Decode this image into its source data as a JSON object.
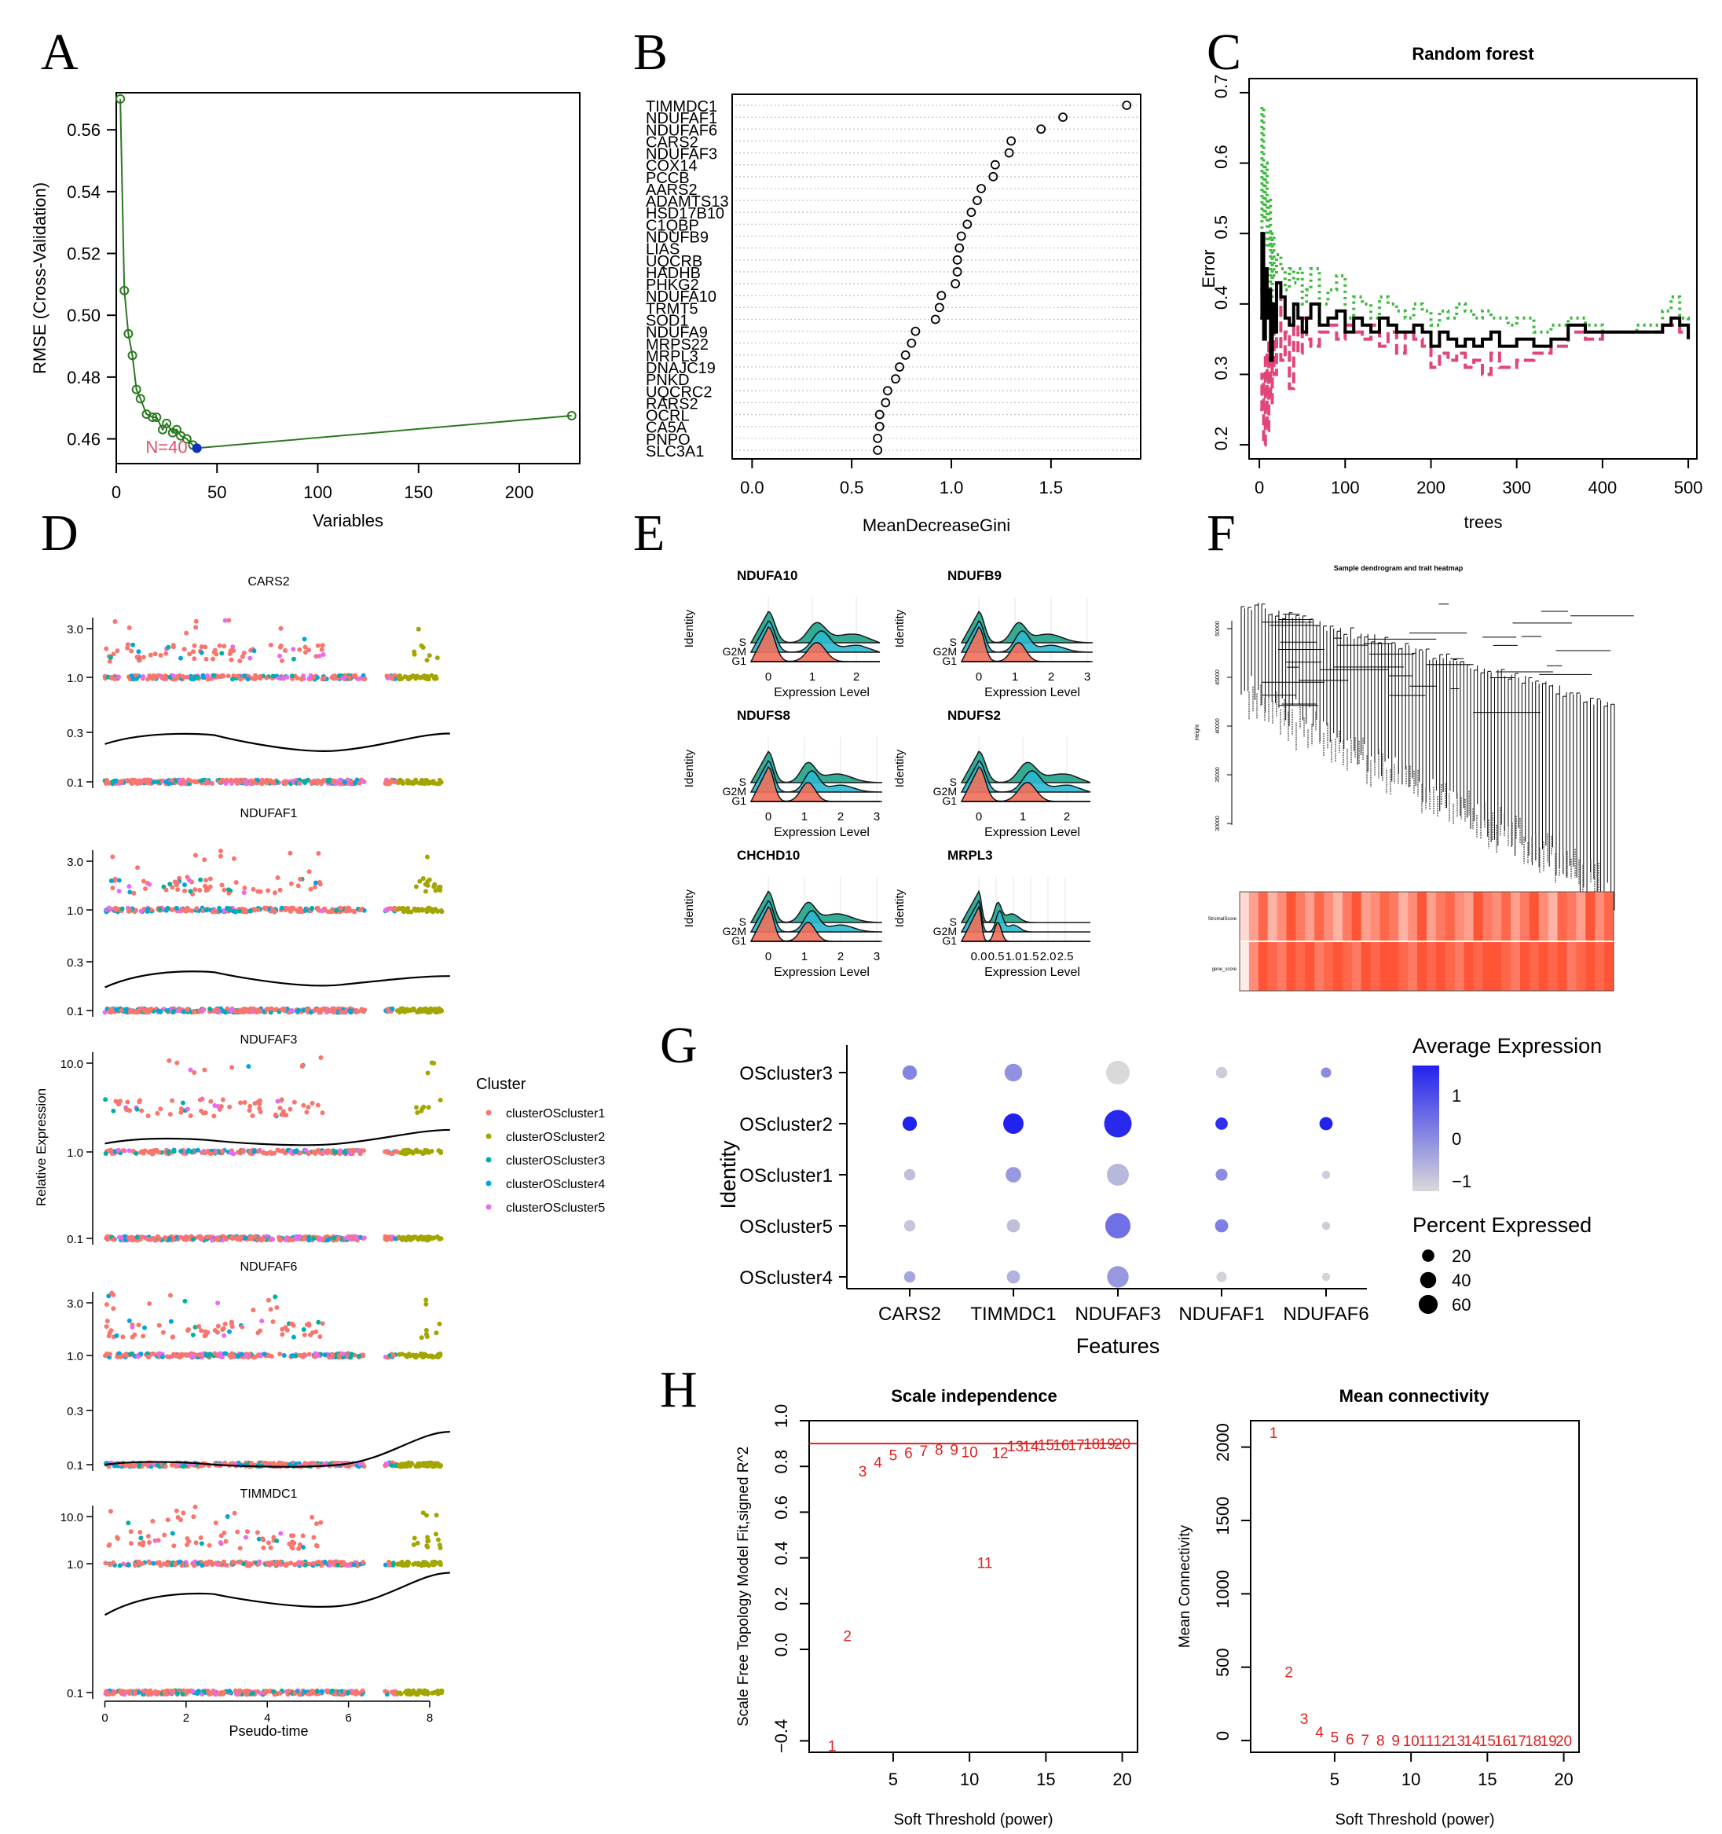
{
  "panel_labels": [
    "A",
    "B",
    "C",
    "D",
    "E",
    "F",
    "G",
    "H"
  ],
  "chart_data": [
    {
      "panel": "A",
      "type": "line",
      "title": "",
      "xlabel": "Variables",
      "ylabel": "RMSE (Cross-Validation)",
      "xlim": [
        0,
        230
      ],
      "ylim": [
        0.452,
        0.572
      ],
      "xticks": [
        0,
        50,
        100,
        150,
        200
      ],
      "yticks": [
        0.46,
        0.48,
        0.5,
        0.52,
        0.54,
        0.56
      ],
      "ytick_labels": [
        "0.46",
        "0.48",
        "0.50",
        "0.52",
        "0.54",
        "0.56"
      ],
      "x": [
        2,
        4,
        6,
        8,
        10,
        12,
        15,
        18,
        20,
        23,
        25,
        28,
        30,
        32,
        35,
        38,
        40,
        226
      ],
      "y": [
        0.57,
        0.508,
        0.494,
        0.487,
        0.476,
        0.473,
        0.468,
        0.467,
        0.467,
        0.463,
        0.465,
        0.462,
        0.463,
        0.461,
        0.46,
        0.458,
        0.457,
        0.4675
      ],
      "line_color": "#2a7a1f",
      "best": {
        "x": 40,
        "y": 0.457,
        "label": "N=40",
        "color": "#1030c0",
        "label_color": "#e05070"
      }
    },
    {
      "panel": "B",
      "type": "scatter",
      "xlabel": "MeanDecreaseGini",
      "xlim": [
        -0.1,
        1.95
      ],
      "xticks": [
        0.0,
        0.5,
        1.0,
        1.5
      ],
      "xtick_labels": [
        "0.0",
        "0.5",
        "1.0",
        "1.5"
      ],
      "categories": [
        "TIMMDC1",
        "NDUFAF1",
        "NDUFAF6",
        "CARS2",
        "NDUFAF3",
        "COX14",
        "PCCB",
        "AARS2",
        "ADAMTS13",
        "HSD17B10",
        "C1QBP",
        "NDUFB9",
        "LIAS",
        "UQCRB",
        "HADHB",
        "PHKG2",
        "NDUFA10",
        "TRMT5",
        "SOD1",
        "NDUFA9",
        "MRPS22",
        "MRPL3",
        "DNAJC19",
        "PNKD",
        "UQCRC2",
        "RARS2",
        "OCRL",
        "CA5A",
        "PNPO",
        "SLC3A1"
      ],
      "values": [
        1.88,
        1.56,
        1.45,
        1.3,
        1.29,
        1.22,
        1.21,
        1.15,
        1.13,
        1.1,
        1.08,
        1.05,
        1.04,
        1.03,
        1.03,
        1.02,
        0.95,
        0.94,
        0.92,
        0.82,
        0.8,
        0.77,
        0.74,
        0.72,
        0.68,
        0.67,
        0.64,
        0.64,
        0.63,
        0.63
      ]
    },
    {
      "panel": "C",
      "type": "line",
      "title": "Random forest",
      "xlabel": "trees",
      "ylabel": "Error",
      "xlim": [
        -12,
        510
      ],
      "ylim": [
        0.18,
        0.72
      ],
      "xticks": [
        0,
        100,
        200,
        300,
        400,
        500
      ],
      "yticks": [
        0.2,
        0.3,
        0.4,
        0.5,
        0.6,
        0.7
      ],
      "ytick_labels": [
        "0.2",
        "0.3",
        "0.4",
        "0.5",
        "0.6",
        "0.7"
      ],
      "series": [
        {
          "values_key": "oob",
          "color": "#000000",
          "style": "solid",
          "width": 4,
          "x": [
            1,
            3,
            5,
            7,
            9,
            11,
            13,
            15,
            17,
            20,
            25,
            30,
            35,
            40,
            45,
            50,
            55,
            60,
            70,
            80,
            90,
            100,
            110,
            120,
            130,
            140,
            150,
            160,
            170,
            180,
            190,
            200,
            210,
            220,
            230,
            240,
            250,
            260,
            270,
            280,
            290,
            300,
            320,
            340,
            360,
            380,
            400,
            420,
            440,
            460,
            470,
            480,
            490,
            500
          ],
          "y": [
            0.38,
            0.5,
            0.35,
            0.45,
            0.38,
            0.42,
            0.32,
            0.4,
            0.36,
            0.43,
            0.41,
            0.38,
            0.37,
            0.4,
            0.38,
            0.36,
            0.38,
            0.4,
            0.37,
            0.38,
            0.39,
            0.36,
            0.38,
            0.37,
            0.36,
            0.38,
            0.37,
            0.36,
            0.36,
            0.37,
            0.36,
            0.34,
            0.36,
            0.35,
            0.34,
            0.35,
            0.34,
            0.35,
            0.36,
            0.34,
            0.34,
            0.35,
            0.34,
            0.35,
            0.37,
            0.36,
            0.36,
            0.36,
            0.36,
            0.36,
            0.37,
            0.38,
            0.37,
            0.35
          ]
        },
        {
          "values_key": "class1",
          "color": "#e0457b",
          "style": "dashed",
          "width": 4,
          "x": [
            1,
            3,
            5,
            7,
            9,
            11,
            13,
            15,
            17,
            20,
            25,
            30,
            35,
            40,
            45,
            50,
            55,
            60,
            70,
            80,
            90,
            100,
            110,
            120,
            130,
            140,
            150,
            160,
            170,
            180,
            190,
            200,
            210,
            220,
            230,
            240,
            250,
            260,
            270,
            280,
            290,
            300,
            320,
            340,
            360,
            380,
            400,
            420,
            440,
            460,
            470,
            480,
            490,
            500
          ],
          "y": [
            0.25,
            0.3,
            0.2,
            0.33,
            0.22,
            0.35,
            0.26,
            0.38,
            0.3,
            0.42,
            0.32,
            0.36,
            0.28,
            0.37,
            0.33,
            0.38,
            0.35,
            0.34,
            0.36,
            0.37,
            0.35,
            0.37,
            0.36,
            0.35,
            0.37,
            0.34,
            0.36,
            0.33,
            0.36,
            0.35,
            0.34,
            0.31,
            0.33,
            0.32,
            0.33,
            0.31,
            0.32,
            0.3,
            0.33,
            0.31,
            0.31,
            0.32,
            0.33,
            0.34,
            0.36,
            0.35,
            0.36,
            0.36,
            0.36,
            0.36,
            0.37,
            0.37,
            0.36,
            0.35
          ]
        },
        {
          "values_key": "class2",
          "color": "#3fb83f",
          "style": "dotted",
          "width": 4,
          "x": [
            1,
            3,
            5,
            7,
            9,
            11,
            13,
            15,
            17,
            20,
            25,
            30,
            35,
            40,
            45,
            50,
            55,
            60,
            70,
            80,
            90,
            100,
            110,
            120,
            130,
            140,
            150,
            160,
            170,
            180,
            190,
            200,
            210,
            220,
            230,
            240,
            250,
            260,
            270,
            280,
            290,
            300,
            320,
            340,
            360,
            380,
            400,
            420,
            440,
            460,
            470,
            480,
            490,
            500
          ],
          "y": [
            0.42,
            0.68,
            0.52,
            0.6,
            0.48,
            0.55,
            0.4,
            0.5,
            0.44,
            0.47,
            0.45,
            0.42,
            0.45,
            0.43,
            0.45,
            0.4,
            0.42,
            0.45,
            0.4,
            0.42,
            0.44,
            0.38,
            0.41,
            0.4,
            0.38,
            0.41,
            0.4,
            0.39,
            0.38,
            0.4,
            0.39,
            0.37,
            0.39,
            0.38,
            0.4,
            0.39,
            0.38,
            0.39,
            0.38,
            0.38,
            0.37,
            0.38,
            0.36,
            0.37,
            0.38,
            0.37,
            0.36,
            0.36,
            0.37,
            0.37,
            0.39,
            0.41,
            0.38,
            0.36
          ]
        }
      ]
    },
    {
      "panel": "D",
      "type": "scatter",
      "xlabel": "Pseudo-time",
      "ylabel": "Relative Expression",
      "xlim": [
        -0.3,
        8.6
      ],
      "xticks": [
        0,
        2,
        4,
        6,
        8
      ],
      "legend": {
        "title": "Cluster",
        "placement": "right",
        "entries": [
          {
            "name": "clusterOScluster1",
            "color": "#f8766d"
          },
          {
            "name": "clusterOScluster2",
            "color": "#a3a500"
          },
          {
            "name": "clusterOScluster3",
            "color": "#00b0a0"
          },
          {
            "name": "clusterOScluster4",
            "color": "#00a5e0"
          },
          {
            "name": "clusterOScluster5",
            "color": "#e76bf3"
          }
        ]
      },
      "facets": [
        {
          "name": "CARS2",
          "levels": [
            "3.0",
            "1.0",
            "0.3",
            "0.1"
          ],
          "curve": [
            0.23,
            0.28,
            0.2,
            0.29
          ]
        },
        {
          "name": "NDUFAF1",
          "levels": [
            "3.0",
            "1.0",
            "0.3",
            "0.1"
          ],
          "curve": [
            0.17,
            0.24,
            0.18,
            0.22
          ]
        },
        {
          "name": "NDUFAF3",
          "levels": [
            "10.0",
            "1.0",
            "0.1"
          ],
          "curve": [
            1.25,
            1.35,
            1.25,
            1.8
          ]
        },
        {
          "name": "NDUFAF6",
          "levels": [
            "3.0",
            "1.0",
            "0.3",
            "0.1"
          ],
          "curve": [
            0.1,
            0.1,
            0.1,
            0.2
          ]
        },
        {
          "name": "TIMMDC1",
          "levels": [
            "10.0",
            "1.0",
            "0.1"
          ],
          "curve": [
            0.4,
            0.58,
            0.47,
            0.85
          ]
        }
      ]
    },
    {
      "panel": "E",
      "type": "area",
      "ylabel": "Identity",
      "xlabel": "Expression Level",
      "identities": [
        "S",
        "G2M",
        "G1"
      ],
      "colors": {
        "S": "#1fa38a",
        "G2M": "#2bbad0",
        "G1": "#f0705a"
      },
      "ridges": [
        {
          "gene": "NDUFA10",
          "xticks": [
            "0",
            "1",
            "2"
          ]
        },
        {
          "gene": "NDUFB9",
          "xticks": [
            "0",
            "1",
            "2",
            "3"
          ]
        },
        {
          "gene": "NDUFS8",
          "xticks": [
            "0",
            "1",
            "2",
            "3"
          ]
        },
        {
          "gene": "NDUFS2",
          "xticks": [
            "0",
            "1",
            "2"
          ]
        },
        {
          "gene": "CHCHD10",
          "xticks": [
            "0",
            "1",
            "2",
            "3"
          ]
        },
        {
          "gene": "MRPL3",
          "xticks": [
            "0.0",
            "0.5",
            "1.0",
            "1.5",
            "2.0",
            "2.5"
          ]
        }
      ]
    },
    {
      "panel": "F",
      "type": "heatmap",
      "title": "Sample dendrogram and trait heatmap",
      "ylabel": "Height",
      "yticks": [
        "50000",
        "45000",
        "40000",
        "35000",
        "30000"
      ],
      "rows": [
        "StromalScore",
        "gene_score"
      ],
      "intensity": {
        "StromalScore": [
          0.2,
          0.5,
          0.8,
          0.4,
          0.6,
          0.9,
          0.7,
          0.5,
          0.8,
          0.6,
          0.4,
          0.7,
          0.9,
          0.5,
          0.6,
          0.8,
          0.7,
          0.4,
          0.6,
          0.9,
          0.5,
          0.7,
          0.8,
          0.6,
          0.5,
          0.9,
          0.7,
          0.6,
          0.8,
          0.5,
          0.7,
          0.9,
          0.6,
          0.4,
          0.8,
          0.7,
          0.5,
          0.9,
          0.6,
          0.8
        ],
        "gene_score": [
          0.1,
          0.6,
          0.9,
          0.8,
          0.7,
          0.9,
          0.8,
          0.9,
          0.7,
          0.8,
          0.9,
          0.8,
          0.7,
          0.9,
          0.8,
          0.9,
          0.9,
          0.8,
          0.7,
          0.9,
          0.8,
          0.9,
          0.8,
          0.7,
          0.9,
          0.8,
          0.9,
          0.9,
          0.8,
          0.7,
          0.9,
          0.8,
          0.9,
          0.8,
          0.9,
          0.7,
          0.8,
          0.9,
          0.8,
          0.9
        ]
      }
    },
    {
      "panel": "G",
      "type": "scatter",
      "xlabel": "Features",
      "ylabel": "Identity",
      "features": [
        "CARS2",
        "TIMMDC1",
        "NDUFAF3",
        "NDUFAF1",
        "NDUFAF6"
      ],
      "identities": [
        "OScluster3",
        "OScluster2",
        "OScluster1",
        "OScluster5",
        "OScluster4"
      ],
      "avg_expression": [
        [
          0.3,
          0.1,
          -1.0,
          -0.8,
          0.2
        ],
        [
          1.8,
          1.8,
          1.7,
          1.6,
          1.8
        ],
        [
          -0.6,
          0.0,
          -0.5,
          0.2,
          -0.8
        ],
        [
          -0.7,
          -0.6,
          0.6,
          0.4,
          -0.8
        ],
        [
          -0.2,
          -0.4,
          0.0,
          -0.9,
          -0.9
        ]
      ],
      "pct_expressed": [
        [
          15,
          25,
          50,
          8,
          6
        ],
        [
          15,
          35,
          70,
          10,
          12
        ],
        [
          8,
          18,
          42,
          9,
          3
        ],
        [
          8,
          12,
          58,
          12,
          3
        ],
        [
          8,
          12,
          40,
          6,
          3
        ]
      ],
      "color_legend": {
        "title": "Average Expression",
        "ticks": [
          "1",
          "0",
          "−1"
        ],
        "low": "#d9d9d9",
        "high": "#2222ee"
      },
      "size_legend": {
        "title": "Percent Expressed",
        "values": [
          20,
          40,
          60
        ],
        "labels": [
          "20",
          "40",
          "60"
        ]
      }
    },
    {
      "panel": "H1",
      "type": "scatter",
      "title": "Scale independence",
      "xlabel": "Soft Threshold (power)",
      "ylabel": "Scale Free Topology Model Fit,signed R^2",
      "xlim": [
        -0.5,
        21
      ],
      "ylim": [
        -0.45,
        1.0
      ],
      "xticks": [
        5,
        10,
        15,
        20
      ],
      "yticks": [
        -0.4,
        0.0,
        0.2,
        0.4,
        0.6,
        0.8,
        1.0
      ],
      "ytick_labels": [
        "−0.4",
        "0.0",
        "0.2",
        "0.4",
        "0.6",
        "0.8",
        "1.0"
      ],
      "hline": 0.9,
      "point_color": "#e02020",
      "x": [
        1,
        2,
        3,
        4,
        5,
        6,
        7,
        8,
        9,
        10,
        11,
        12,
        13,
        14,
        15,
        16,
        17,
        18,
        19,
        20
      ],
      "y": [
        -0.42,
        0.06,
        0.78,
        0.82,
        0.85,
        0.86,
        0.87,
        0.875,
        0.875,
        0.865,
        0.38,
        0.86,
        0.89,
        0.89,
        0.895,
        0.895,
        0.895,
        0.9,
        0.9,
        0.9
      ]
    },
    {
      "panel": "H2",
      "type": "scatter",
      "title": "Mean connectivity",
      "xlabel": "Soft Threshold (power)",
      "ylabel": "Mean Connectivity",
      "xlim": [
        -0.5,
        21
      ],
      "ylim": [
        -80,
        2180
      ],
      "xticks": [
        5,
        10,
        15,
        20
      ],
      "yticks": [
        0,
        500,
        1000,
        1500,
        2000
      ],
      "point_color": "#e02020",
      "x": [
        1,
        2,
        3,
        4,
        5,
        6,
        7,
        8,
        9,
        10,
        11,
        12,
        13,
        14,
        15,
        16,
        17,
        18,
        19,
        20
      ],
      "y": [
        2100,
        470,
        150,
        60,
        25,
        10,
        6,
        4,
        2,
        1,
        1,
        0.5,
        0.4,
        0.3,
        0.2,
        0.2,
        0.1,
        0.1,
        0.1,
        0.1
      ]
    }
  ]
}
